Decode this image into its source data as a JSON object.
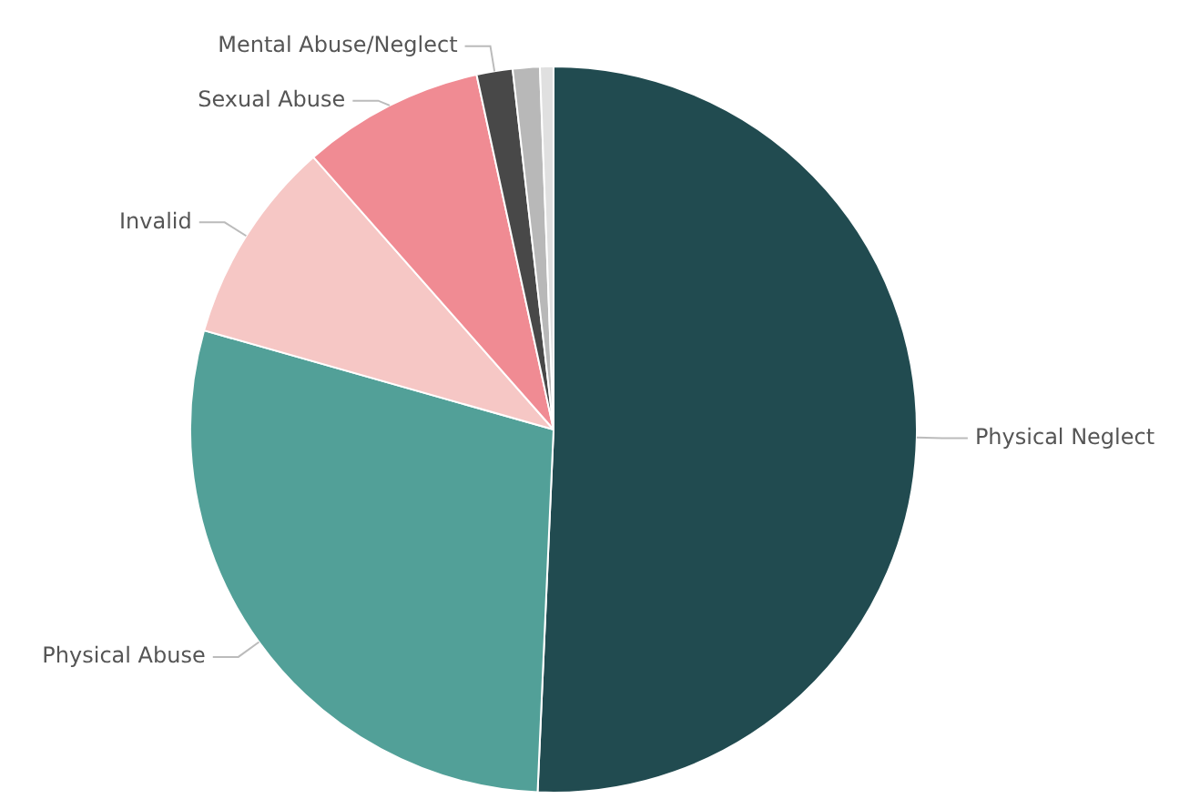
{
  "chart_data": {
    "type": "pie",
    "categories": [
      "Physical Neglect",
      "Physical Abuse",
      "Invalid",
      "Sexual Abuse",
      "Mental Abuse/Neglect",
      null,
      null
    ],
    "values": [
      50.7,
      28.7,
      9.1,
      8.1,
      1.6,
      1.2,
      0.6
    ],
    "colors": [
      "#214b50",
      "#52a098",
      "#f6c7c5",
      "#f08b93",
      "#484848",
      "#b8b8b8",
      "#e0e0e0"
    ]
  }
}
